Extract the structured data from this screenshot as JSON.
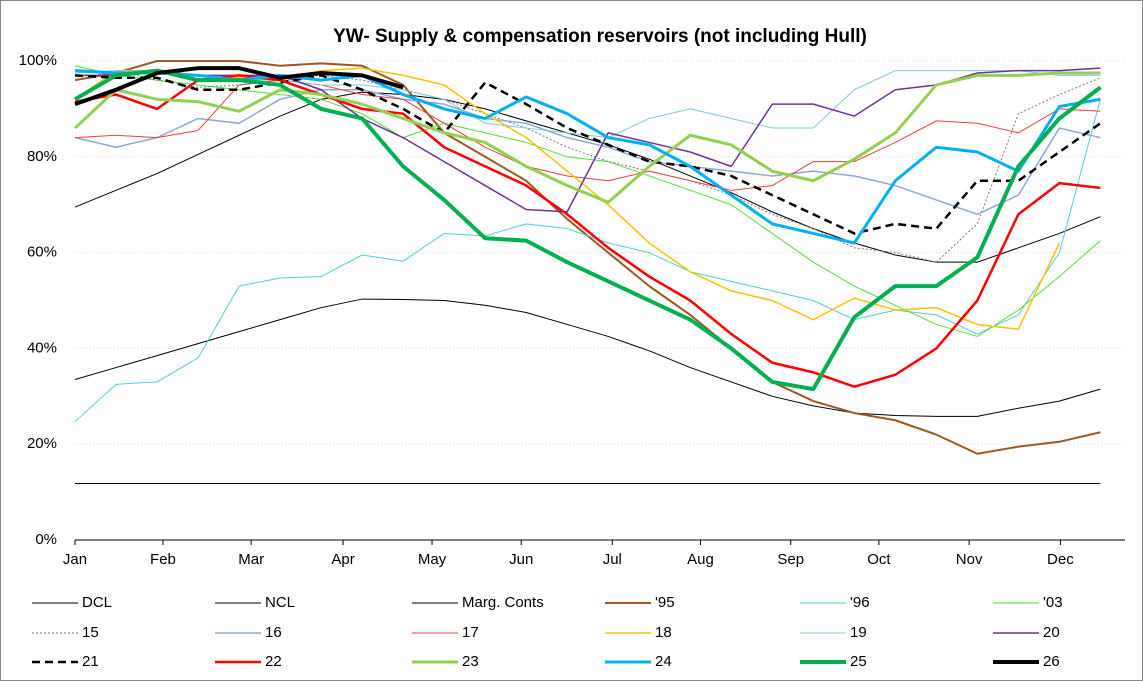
{
  "chart_data": {
    "type": "line",
    "title": "YW- Supply & compensation reservoirs (not including Hull)",
    "x": [
      1,
      3,
      5,
      7,
      9,
      11,
      13,
      15,
      17,
      19,
      21,
      23,
      25,
      27,
      29,
      31,
      33,
      35,
      37,
      39,
      41,
      43,
      45,
      47,
      49,
      51
    ],
    "xlim": [
      1,
      52.2
    ],
    "xticks": [
      {
        "value": 1,
        "label": "Jan"
      },
      {
        "value": 5.29,
        "label": "Feb"
      },
      {
        "value": 9.59,
        "label": "Mar"
      },
      {
        "value": 14.07,
        "label": "Apr"
      },
      {
        "value": 18.41,
        "label": "May"
      },
      {
        "value": 22.76,
        "label": "Jun"
      },
      {
        "value": 27.2,
        "label": "Jul"
      },
      {
        "value": 31.5,
        "label": "Aug"
      },
      {
        "value": 35.9,
        "label": "Sep"
      },
      {
        "value": 40.2,
        "label": "Oct"
      },
      {
        "value": 44.6,
        "label": "Nov"
      },
      {
        "value": 49.05,
        "label": "Dec"
      }
    ],
    "ylim": [
      0,
      100
    ],
    "yticks": [
      {
        "value": 0,
        "label": "0%"
      },
      {
        "value": 20,
        "label": "20%"
      },
      {
        "value": 40,
        "label": "40%"
      },
      {
        "value": 60,
        "label": "60%"
      },
      {
        "value": 80,
        "label": "80%"
      },
      {
        "value": 100,
        "label": "100%"
      }
    ],
    "grid": true,
    "legend": "bottom",
    "series": [
      {
        "name": "DCL",
        "color": "#000000",
        "width": 1,
        "dash": "none",
        "values": [
          33.5,
          36,
          38.5,
          41,
          43.5,
          46,
          48.5,
          50.3,
          50.2,
          50,
          49,
          47.5,
          45,
          42.5,
          39.5,
          36,
          33,
          30,
          28,
          26.5,
          26,
          25.8,
          25.8,
          27.5,
          29,
          31.5
        ]
      },
      {
        "name": "NCL",
        "color": "#000000",
        "width": 1,
        "dash": "none",
        "values": [
          69.5,
          73,
          76.5,
          80.5,
          84.5,
          88.5,
          92,
          93.5,
          93,
          92,
          90,
          87.5,
          85,
          82.5,
          79.5,
          76,
          72.5,
          68.5,
          65,
          62,
          59.5,
          58,
          58,
          61,
          64,
          67.5
        ]
      },
      {
        "name": "Marg. Conts",
        "color": "#000000",
        "width": 1,
        "dash": "none",
        "values": [
          11.8,
          11.8,
          11.8,
          11.8,
          11.8,
          11.8,
          11.8,
          11.8,
          11.8,
          11.8,
          11.8,
          11.8,
          11.8,
          11.8,
          11.8,
          11.8,
          11.8,
          11.8,
          11.8,
          11.8,
          11.8,
          11.8,
          11.8,
          11.8,
          11.8,
          11.8
        ]
      },
      {
        "name": "'95",
        "color": "#9c5a1e",
        "width": 2,
        "dash": "none",
        "values": [
          96,
          97.5,
          100,
          100,
          100,
          99,
          99.5,
          99,
          95,
          85,
          80,
          75,
          67,
          60,
          53,
          47,
          40,
          33,
          29,
          26.5,
          25,
          22,
          18,
          19.5,
          20.5,
          22.5
        ]
      },
      {
        "name": "'96",
        "color": "#4fcfd8",
        "width": 1,
        "dash": "none",
        "values": [
          24.7,
          32.5,
          33,
          38,
          53,
          54.7,
          55,
          59.5,
          58.2,
          64,
          63.5,
          66,
          65,
          62,
          60,
          56,
          54,
          52,
          50,
          46,
          48,
          47,
          43,
          47,
          60,
          92
        ]
      },
      {
        "name": "'03",
        "color": "#55dd33",
        "width": 1,
        "dash": "none",
        "values": [
          99,
          97,
          96,
          95,
          94,
          93,
          92,
          89,
          84,
          87,
          85,
          83,
          80,
          79,
          76,
          73,
          70,
          64,
          58,
          53,
          49,
          45,
          42.5,
          48,
          55,
          62.5
        ]
      },
      {
        "name": "15",
        "color": "#777777",
        "width": 1,
        "dash": "2,2",
        "values": [
          96,
          98,
          96,
          94.5,
          95,
          96,
          97,
          96,
          94,
          92,
          89,
          86,
          82,
          79,
          77,
          75,
          72,
          68,
          65,
          61,
          60,
          58,
          66,
          89,
          93,
          96.5
        ]
      },
      {
        "name": "16",
        "color": "#8fa9d6",
        "width": 1.5,
        "dash": "none",
        "values": [
          84,
          82,
          84,
          88,
          87,
          92,
          94,
          94,
          92,
          91,
          88,
          87,
          84,
          82,
          79,
          78,
          77,
          76,
          77,
          76,
          74,
          71,
          68,
          72,
          86,
          84
        ]
      },
      {
        "name": "17",
        "color": "#f03c3c",
        "width": 1,
        "dash": "none",
        "values": [
          84,
          84.5,
          84,
          85.5,
          95,
          96,
          95,
          93,
          92,
          87,
          82,
          78,
          76,
          75,
          77,
          75,
          73,
          74,
          79,
          79,
          83,
          87.5,
          87,
          85,
          90,
          89.5
        ]
      },
      {
        "name": "18",
        "color": "#ffc000",
        "width": 1.5,
        "dash": "none",
        "values": [
          92,
          98,
          98,
          96,
          96.5,
          96,
          98,
          98.5,
          97,
          95,
          89,
          84,
          77,
          70,
          62,
          56,
          52,
          50,
          46,
          50.5,
          48,
          48.5,
          45,
          44,
          62,
          null
        ]
      },
      {
        "name": "19",
        "color": "#7fc8d8",
        "width": 1,
        "dash": "none",
        "values": [
          97.5,
          98,
          98,
          97,
          96,
          96,
          95,
          95,
          94,
          92,
          87,
          86,
          85,
          84,
          88,
          90,
          88,
          86,
          86,
          94,
          98,
          98,
          98,
          98,
          97,
          97
        ]
      },
      {
        "name": "20",
        "color": "#7030a0",
        "width": 1.5,
        "dash": "none",
        "values": [
          97,
          97,
          98,
          97,
          97,
          97,
          94,
          88,
          84,
          79,
          74,
          69,
          68.5,
          85,
          83,
          81,
          78,
          91,
          91,
          88.5,
          94,
          95,
          97.5,
          98,
          98,
          98.5
        ]
      },
      {
        "name": "21",
        "color": "#000000",
        "width": 2.5,
        "dash": "8,5",
        "values": [
          97,
          96.5,
          96.5,
          94,
          94,
          95.5,
          97,
          94,
          90,
          85,
          95.5,
          91,
          86,
          82.5,
          79,
          78,
          76,
          72,
          68,
          64,
          66,
          65,
          75,
          75,
          81,
          87
        ]
      },
      {
        "name": "22",
        "color": "#ff0000",
        "width": 2.5,
        "dash": "none",
        "values": [
          91.5,
          93,
          90,
          96,
          97,
          96,
          93,
          90,
          89,
          82,
          78,
          74,
          68,
          61,
          55,
          50,
          43,
          37,
          35,
          32,
          34.5,
          40,
          50,
          68,
          74.5,
          73.5
        ]
      },
      {
        "name": "23",
        "color": "#92d050",
        "width": 3,
        "dash": "none",
        "values": [
          86,
          94,
          92,
          91.5,
          89.5,
          94,
          93,
          91,
          88,
          85,
          83,
          78,
          74,
          70.5,
          78,
          84.5,
          82.5,
          77,
          75,
          79.5,
          85,
          95,
          97,
          97,
          97.5,
          97.5
        ]
      },
      {
        "name": "24",
        "color": "#00b0f0",
        "width": 3,
        "dash": "none",
        "values": [
          98,
          97.5,
          97.5,
          97,
          96,
          97,
          96,
          97,
          93,
          90,
          88,
          92.5,
          89,
          84,
          82.5,
          78,
          72,
          66,
          64,
          62,
          75,
          82,
          81,
          77,
          90.5,
          92
        ]
      },
      {
        "name": "25",
        "color": "#00b050",
        "width": 4,
        "dash": "none",
        "values": [
          92,
          97,
          98,
          96,
          96,
          95,
          90,
          88,
          78,
          71,
          63,
          62.5,
          58,
          54,
          50,
          46,
          40,
          33,
          31.5,
          46.5,
          53,
          53,
          59,
          78,
          88,
          94.5
        ]
      },
      {
        "name": "26",
        "color": "#000000",
        "width": 4,
        "dash": "none",
        "values": [
          91,
          94,
          97.5,
          98.5,
          98.5,
          96.5,
          97.5,
          97,
          94.5,
          null,
          null,
          null,
          null,
          null,
          null,
          null,
          null,
          null,
          null,
          null,
          null,
          null,
          null,
          null,
          null,
          null
        ]
      }
    ]
  }
}
